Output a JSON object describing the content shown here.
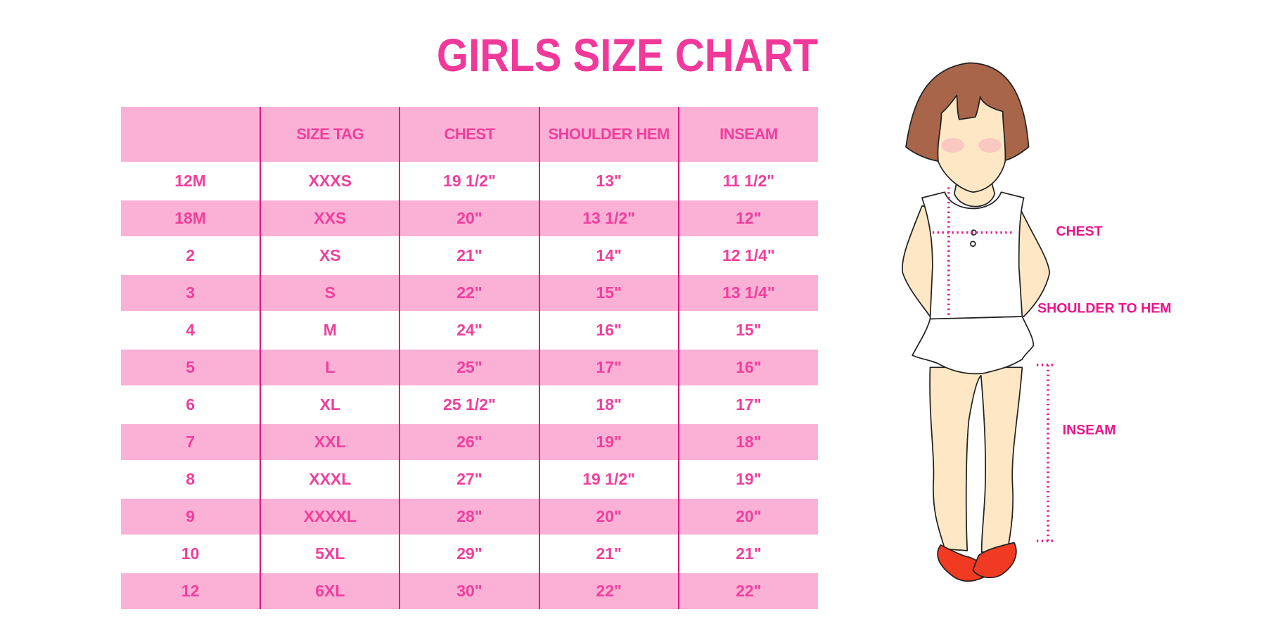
{
  "title": "GIRLS SIZE CHART",
  "table": {
    "headers": [
      "",
      "SIZE TAG",
      "CHEST",
      "SHOULDER HEM",
      "INSEAM"
    ],
    "rows": [
      [
        "12M",
        "XXXS",
        "19 1/2\"",
        "13\"",
        "11 1/2\""
      ],
      [
        "18M",
        "XXS",
        "20\"",
        "13 1/2\"",
        "12\""
      ],
      [
        "2",
        "XS",
        "21\"",
        "14\"",
        "12 1/4\""
      ],
      [
        "3",
        "S",
        "22\"",
        "15\"",
        "13 1/4\""
      ],
      [
        "4",
        "M",
        "24\"",
        "16\"",
        "15\""
      ],
      [
        "5",
        "L",
        "25\"",
        "17\"",
        "16\""
      ],
      [
        "6",
        "XL",
        "25 1/2\"",
        "18\"",
        "17\""
      ],
      [
        "7",
        "XXL",
        "26\"",
        "19\"",
        "18\""
      ],
      [
        "8",
        "XXXL",
        "27\"",
        "19 1/2\"",
        "19\""
      ],
      [
        "9",
        "XXXXL",
        "28\"",
        "20\"",
        "20\""
      ],
      [
        "10",
        "5XL",
        "29\"",
        "21\"",
        "21\""
      ],
      [
        "12",
        "6XL",
        "30\"",
        "22\"",
        "22\""
      ]
    ]
  },
  "figure": {
    "labels": {
      "chest": "CHEST",
      "shoulder_to_hem": "SHOULDER TO HEM",
      "inseam": "INSEAM"
    }
  },
  "colors": {
    "accent": "#f0399a",
    "header_bg": "#fbb1d6",
    "divider": "#e0167f",
    "hair": "#a8654a",
    "skin": "#fde7c4",
    "shoes": "#f03a22"
  }
}
